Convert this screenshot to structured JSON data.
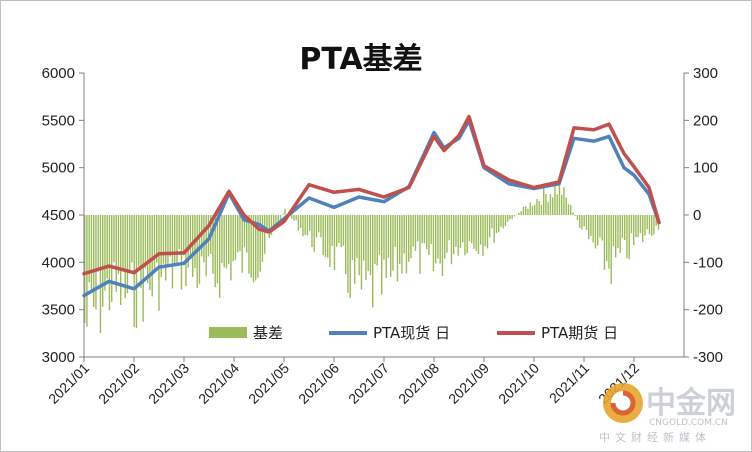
{
  "chart_data": {
    "type": "bar+line",
    "title": "PTA基差",
    "categories": [
      "2021/01",
      "2021/02",
      "2021/03",
      "2021/04",
      "2021/05",
      "2021/06",
      "2021/07",
      "2021/08",
      "2021/09",
      "2021/10",
      "2021/11",
      "2021/12"
    ],
    "y_left": {
      "range": [
        3000,
        6000
      ],
      "ticks": [
        "3000",
        "3500",
        "4000",
        "4500",
        "5000",
        "5500",
        "6000"
      ]
    },
    "y_right": {
      "range": [
        -300,
        300
      ],
      "ticks": [
        "-300",
        "-200",
        "-100",
        "0",
        "100",
        "200",
        "300"
      ]
    },
    "series": [
      {
        "name": "基差",
        "type": "bar",
        "axis": "right",
        "color": "#9bbb59",
        "x": [
          0.0,
          0.5,
          1.0,
          1.5,
          2.0,
          2.5,
          3.0,
          3.5,
          4.0,
          4.5,
          5.0,
          5.5,
          6.0,
          6.5,
          7.0,
          7.5,
          8.0,
          8.5,
          9.0,
          9.5,
          10.0,
          10.5,
          11.0,
          11.5
        ],
        "values": [
          -230,
          -160,
          -170,
          -140,
          -110,
          -140,
          -100,
          -100,
          10,
          -50,
          -90,
          -160,
          -150,
          -80,
          -110,
          -60,
          -60,
          -10,
          30,
          60,
          -40,
          -110,
          -60,
          -20
        ]
      },
      {
        "name": "PTA现货 日",
        "type": "line",
        "axis": "left",
        "color": "#4f81bd",
        "x": [
          0.0,
          0.5,
          1.0,
          1.5,
          2.0,
          2.5,
          2.9,
          3.2,
          3.5,
          3.7,
          4.0,
          4.5,
          5.0,
          5.5,
          6.0,
          6.5,
          7.0,
          7.2,
          7.5,
          7.7,
          8.0,
          8.5,
          9.0,
          9.5,
          9.8,
          10.2,
          10.5,
          10.8,
          11.0,
          11.3,
          11.5
        ],
        "values": [
          3650,
          3800,
          3720,
          3950,
          3990,
          4250,
          4730,
          4450,
          4400,
          4330,
          4460,
          4680,
          4580,
          4690,
          4640,
          4800,
          5370,
          5210,
          5310,
          5500,
          5000,
          4830,
          4780,
          4830,
          5310,
          5280,
          5330,
          5000,
          4920,
          4720,
          4420
        ]
      },
      {
        "name": "PTA期货 日",
        "type": "line",
        "axis": "left",
        "color": "#c0504d",
        "x": [
          0.0,
          0.5,
          1.0,
          1.5,
          2.0,
          2.5,
          2.9,
          3.2,
          3.5,
          3.7,
          4.0,
          4.5,
          5.0,
          5.5,
          6.0,
          6.5,
          7.0,
          7.2,
          7.5,
          7.7,
          8.0,
          8.5,
          9.0,
          9.5,
          9.8,
          10.2,
          10.5,
          10.8,
          11.0,
          11.3,
          11.5
        ],
        "values": [
          3880,
          3960,
          3890,
          4090,
          4100,
          4390,
          4750,
          4500,
          4350,
          4320,
          4430,
          4820,
          4740,
          4770,
          4690,
          4790,
          5330,
          5180,
          5340,
          5540,
          5020,
          4870,
          4790,
          4850,
          5420,
          5400,
          5460,
          5150,
          5010,
          4790,
          4420
        ]
      }
    ],
    "legend_position": "bottom-inside",
    "grid": false
  },
  "watermark": {
    "name": "中金网",
    "domain": "CNGOLD.COM.CN",
    "tagline": "中文财经新媒体"
  }
}
